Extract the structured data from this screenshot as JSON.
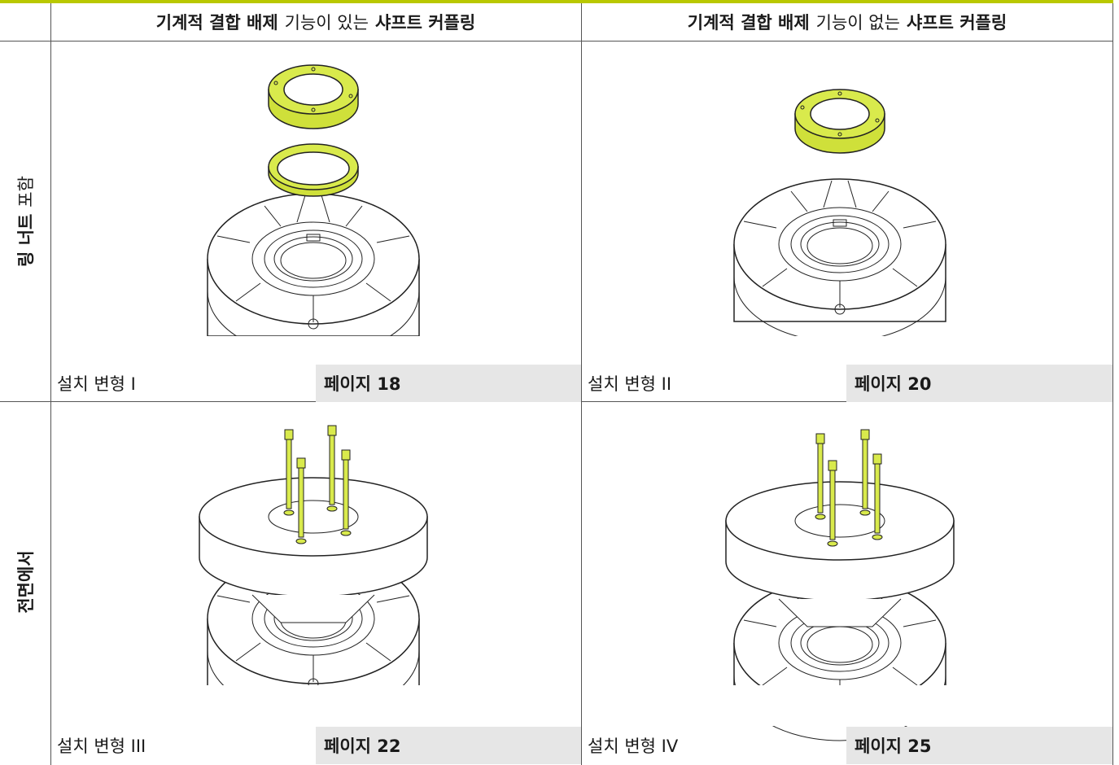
{
  "header": {
    "columns": [
      {
        "parts": [
          "기계적 결합 배제",
          "기능이 있는",
          "샤프트 커플링"
        ]
      },
      {
        "parts": [
          "기계적 결합 배제",
          "기능이 없는",
          "샤프트 커플링"
        ]
      }
    ]
  },
  "rows": [
    {
      "label": [
        "링 너트",
        "포함"
      ],
      "cells": [
        {
          "caption": "설치 변형 I",
          "page": "페이지 18"
        },
        {
          "caption": "설치 변형 II",
          "page": "페이지 20"
        }
      ]
    },
    {
      "label": [
        "전면에서"
      ],
      "cells": [
        {
          "caption": "설치 변형 III",
          "page": "페이지 22"
        },
        {
          "caption": "설치 변형 IV",
          "page": "페이지 25"
        }
      ]
    }
  ]
}
